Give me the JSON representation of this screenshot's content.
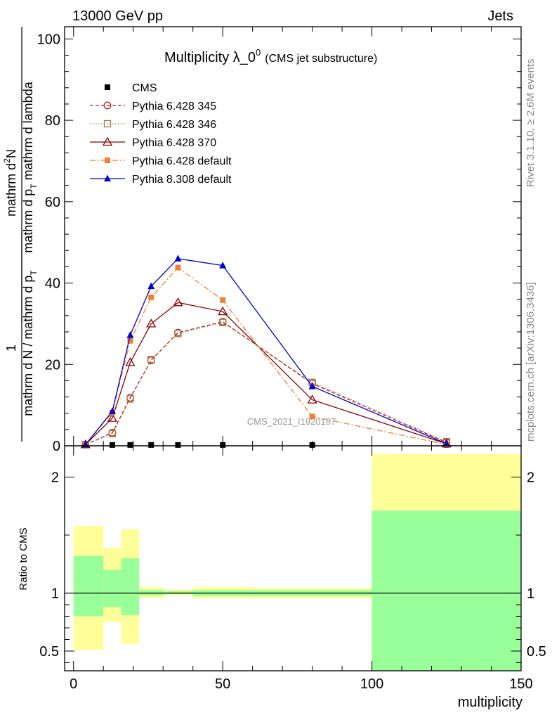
{
  "header": {
    "energy": "13000 GeV pp",
    "category": "Jets"
  },
  "sidebar": {
    "rivet": "Rivet 3.1.10, ≥ 2.6M events",
    "mcplots": "mcplots.cern.ch [arXiv:1306.3436]"
  },
  "watermark": "CMS_2021_I1920187",
  "chart_data": [
    {
      "type": "line",
      "title": "Multiplicity λ_0",
      "title_sup": "0",
      "subtitle": "(CMS jet substructure)",
      "ylabel_numerator": "mathrm d",
      "ylabel_numerator_sup": "2",
      "ylabel_numerator_tail": "N",
      "ylabel_denominator": "mathrm d p",
      "ylabel_denominator_sub": "T",
      "ylabel_denominator_tail": " mathrm d lambda",
      "ylabel_prefactor_num": "1",
      "ylabel_prefactor_den": "mathrm d N / mathrm d p",
      "ylabel_prefactor_den_sub": "T",
      "xlim": [
        -3,
        150
      ],
      "ylim": [
        0,
        103
      ],
      "yticks": [
        0,
        20,
        40,
        60,
        80,
        100
      ],
      "grid": false,
      "legend_position": "top-left",
      "series": [
        {
          "name": "CMS",
          "color": "#000000",
          "marker": "filled-square",
          "line": "none",
          "x": [
            4,
            13,
            19,
            26,
            35,
            50,
            80,
            125
          ],
          "y": [
            0.2,
            0.2,
            0.2,
            0.2,
            0.2,
            0.2,
            0.2,
            0.2
          ]
        },
        {
          "name": "Pythia 6.428 345",
          "color": "#b22222",
          "marker": "open-circle",
          "line": "dashed",
          "x": [
            4,
            13,
            19,
            26,
            35,
            50,
            80,
            125
          ],
          "y": [
            0.3,
            3.2,
            11.8,
            21.0,
            27.8,
            30.5,
            15.3,
            0.8
          ]
        },
        {
          "name": "Pythia 6.428 346",
          "color": "#a0784a",
          "marker": "open-square",
          "line": "dotted",
          "x": [
            4,
            13,
            19,
            26,
            35,
            50,
            80,
            125
          ],
          "y": [
            0.3,
            3.0,
            11.5,
            21.2,
            27.6,
            30.3,
            15.6,
            1.0
          ]
        },
        {
          "name": "Pythia 6.428 370",
          "color": "#8b0000",
          "marker": "open-triangle",
          "line": "solid",
          "x": [
            4,
            13,
            19,
            26,
            35,
            50,
            80,
            125
          ],
          "y": [
            0.3,
            6.8,
            20.5,
            30.0,
            35.2,
            33.0,
            11.3,
            0.5
          ]
        },
        {
          "name": "Pythia 6.428 default",
          "color": "#f08030",
          "marker": "filled-square",
          "line": "dash-dot",
          "x": [
            4,
            13,
            19,
            26,
            35,
            50,
            80,
            125
          ],
          "y": [
            0.3,
            8.2,
            25.8,
            36.5,
            43.8,
            35.8,
            7.2,
            0.3
          ]
        },
        {
          "name": "Pythia 8.308 default",
          "color": "#0000cc",
          "marker": "filled-triangle",
          "line": "solid",
          "x": [
            4,
            13,
            19,
            26,
            35,
            50,
            80,
            125
          ],
          "y": [
            0.3,
            8.5,
            27.2,
            39.2,
            46.0,
            44.3,
            14.6,
            0.5
          ]
        }
      ]
    },
    {
      "type": "area",
      "ylabel": "Ratio to CMS",
      "xlabel": "multiplicity",
      "xlim": [
        -3,
        150
      ],
      "ylim": [
        0.33,
        2.27
      ],
      "xticks": [
        0,
        50,
        100,
        150
      ],
      "yticks": [
        0.5,
        1,
        2
      ],
      "reference_line": 1,
      "colors": {
        "outer": "#ffff99",
        "inner": "#99ff99"
      },
      "bins": [
        {
          "x0": 0,
          "x1": 10,
          "outer": [
            0.51,
            1.58
          ],
          "inner": [
            0.8,
            1.32
          ]
        },
        {
          "x0": 10,
          "x1": 16,
          "outer": [
            0.75,
            1.39
          ],
          "inner": [
            0.88,
            1.2
          ]
        },
        {
          "x0": 16,
          "x1": 22,
          "outer": [
            0.56,
            1.55
          ],
          "inner": [
            0.81,
            1.3
          ]
        },
        {
          "x0": 22,
          "x1": 30,
          "outer": [
            0.96,
            1.05
          ],
          "inner": [
            0.98,
            1.025
          ]
        },
        {
          "x0": 30,
          "x1": 40,
          "outer": [
            0.98,
            1.03
          ],
          "inner": [
            0.99,
            1.015
          ]
        },
        {
          "x0": 40,
          "x1": 60,
          "outer": [
            0.955,
            1.05
          ],
          "inner": [
            0.975,
            1.025
          ]
        },
        {
          "x0": 60,
          "x1": 100,
          "outer": [
            0.955,
            1.045
          ],
          "inner": [
            0.975,
            1.025
          ]
        },
        {
          "x0": 100,
          "x1": 150,
          "outer": [
            0.33,
            2.2
          ],
          "inner": [
            0.33,
            1.71
          ]
        }
      ]
    }
  ]
}
